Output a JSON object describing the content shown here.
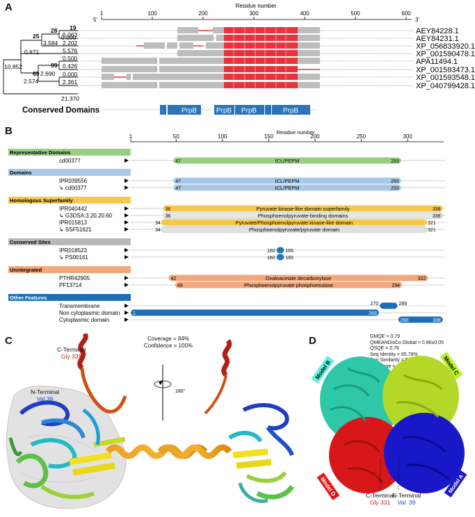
{
  "panels": {
    "a": "A",
    "b": "B",
    "c": "C",
    "d": "D"
  },
  "panel_a": {
    "axis_title": "Residue number",
    "ticks": [
      "1",
      "100",
      "200",
      "300",
      "400",
      "500",
      "600"
    ],
    "end5": "5'",
    "end3": "3'",
    "sequences": [
      "AEY84228.1",
      "AEY84231.1",
      "XP_056833920.1",
      "XP_001590478.1",
      "APA11494.1",
      "XP_001593473.1",
      "XP_001593548.1",
      "XP_040799428.1"
    ],
    "tree_values": {
      "n19": "19",
      "v6063": "6.063",
      "n28": "28",
      "v000a": "0.000",
      "v2202": "2.202",
      "n25": "25",
      "v3584": "3.584",
      "v5576": "5.576",
      "v0871": "0.871",
      "v0500": "0.500",
      "v10852": "10.852",
      "n99": "99",
      "v0426": "0.426",
      "n69": "69",
      "v2690": "2.690",
      "v000b": "0.000",
      "v2574": "2.574",
      "v2361": "2.361",
      "v21370": "21.370"
    },
    "conserved_label": "Conserved Domains",
    "domain_labels": [
      "PrpB",
      "PrpB",
      "PrpB",
      "PrpB"
    ],
    "colors": {
      "gap_gray": "#bdbdbd",
      "conserved_red": "#e8333c",
      "domain_blue": "#2a74b8"
    }
  },
  "panel_b": {
    "axis_title": "Residue number",
    "ticks": [
      "1",
      "50",
      "100",
      "150",
      "200",
      "250",
      "300"
    ],
    "categories": [
      {
        "title": "Representative Domains",
        "color": "#9bce82",
        "rows": [
          {
            "label": "cd00377",
            "bars": [
              {
                "start": "47",
                "end": "293",
                "name": "ICL/PEPM"
              }
            ]
          }
        ]
      },
      {
        "title": "Domains",
        "color": "#a8c8e8",
        "rows": [
          {
            "label": "IPR039556",
            "bars": [
              {
                "start": "47",
                "end": "293",
                "name": "ICL/PEPM"
              }
            ]
          },
          {
            "label": "↳ cd00377",
            "bars": [
              {
                "start": "47",
                "end": "293",
                "name": "ICL/PEPM"
              }
            ]
          }
        ]
      },
      {
        "title": "Homologous Superfamily",
        "color": "#f7c94a",
        "rows": [
          {
            "label": "IPR040442",
            "bars": [
              {
                "start": "36",
                "end": "338",
                "name": "Pyruvate kinase-like domain superfamily"
              }
            ]
          },
          {
            "label": "↳ G3DSA:3.20.20.60",
            "bars": [
              {
                "start": "36",
                "end": "338",
                "name": "Phosphoenolpyruvate-binding domains"
              }
            ]
          },
          {
            "label": "IPR015813",
            "bars": [
              {
                "start": "34",
                "end": "321",
                "name": "Pyruvate/Phosphoenolpyruvate kinase-like domain"
              }
            ]
          },
          {
            "label": "↳ SSF51621",
            "bars": [
              {
                "start": "34",
                "end": "321",
                "name": "Phosphoenolpyruvate/pyruvate domain"
              }
            ]
          }
        ]
      },
      {
        "title": "Conserved Sites",
        "color": "#b8b8b8",
        "rows": [
          {
            "label": "IPR018523",
            "bars": [
              {
                "start": "160",
                "end": "165",
                "name": ""
              }
            ]
          },
          {
            "label": "↳ PS00161",
            "bars": [
              {
                "start": "160",
                "end": "165",
                "name": ""
              }
            ]
          }
        ]
      },
      {
        "title": "Unintegrated",
        "color": "#f3a77a",
        "rows": [
          {
            "label": "PTHR42905",
            "bars": [
              {
                "start": "42",
                "end": "322",
                "name": "Oxaloacetate decarboxylase"
              }
            ]
          },
          {
            "label": "PF13714",
            "bars": [
              {
                "start": "49",
                "end": "294",
                "name": "Phosphoenolpyruvate phosphomutase"
              }
            ]
          }
        ]
      },
      {
        "title": "Other Features",
        "color": "#1f6fb8",
        "rows": [
          {
            "label": "Transmembrane",
            "bars": [
              {
                "start": "270",
                "end": "289",
                "name": ""
              }
            ]
          },
          {
            "label": "Non cytoplasmic domain",
            "bars": [
              {
                "start": "1",
                "end": "269",
                "name": ""
              }
            ]
          },
          {
            "label": "Cytoplasmic domain",
            "bars": [
              {
                "start": "290",
                "end": "338",
                "name": ""
              }
            ]
          }
        ]
      }
    ]
  },
  "panel_c": {
    "coverage": "Coverage = 84%",
    "confidence": "Confidence = 100%",
    "c_term_title": "C-Terminal",
    "c_term_res": "Gly 331",
    "n_term_title": "N-Terminal",
    "n_term_res": "Val 39",
    "rotation": "180°"
  },
  "panel_d": {
    "stats": [
      "GMQE = 0.79",
      "QMEANDisCo Global = 0.86±0.05",
      "QSQE = 0.76",
      "Seq Identity = 65.78%",
      "Seq Similarity = 50%",
      "Coverage = 89%"
    ],
    "model_b": "Model B",
    "model_c": "Model C",
    "model_d": "Model D",
    "model_a": "Model A",
    "c_term_title": "C-Terminal",
    "c_term_res": "Gly 331",
    "n_term_title": "N-Terminal",
    "n_term_res": "Val  39"
  }
}
